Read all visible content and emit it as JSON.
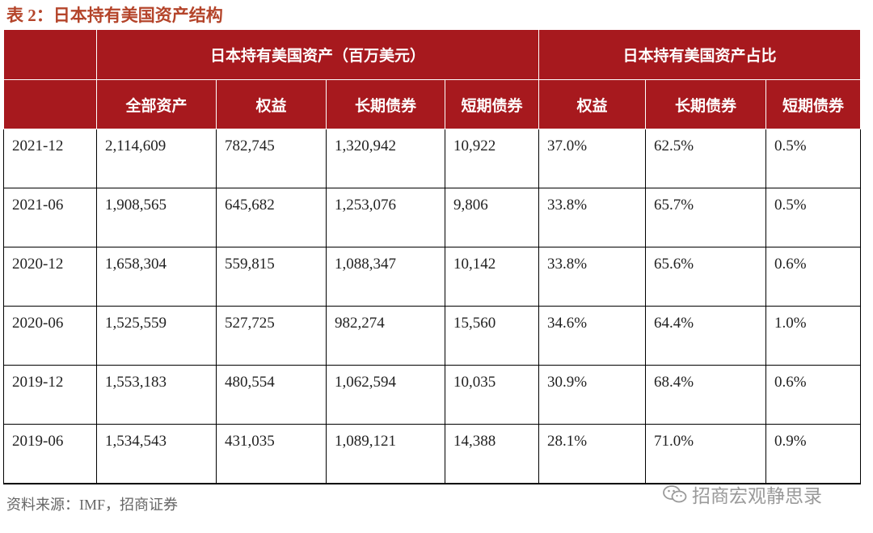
{
  "title": "表 2：日本持有美国资产结构",
  "table": {
    "group_headers": [
      "日本持有美国资产（百万美元）",
      "日本持有美国资产占比"
    ],
    "sub_headers": [
      "全部资产",
      "权益",
      "长期债券",
      "短期债券",
      "权益",
      "长期债券",
      "短期债券"
    ],
    "rows": [
      [
        "2021-12",
        "2,114,609",
        "782,745",
        "1,320,942",
        "10,922",
        "37.0%",
        "62.5%",
        "0.5%"
      ],
      [
        "2021-06",
        "1,908,565",
        "645,682",
        "1,253,076",
        "9,806",
        "33.8%",
        "65.7%",
        "0.5%"
      ],
      [
        "2020-12",
        "1,658,304",
        "559,815",
        "1,088,347",
        "10,142",
        "33.8%",
        "65.6%",
        "0.6%"
      ],
      [
        "2020-06",
        "1,525,559",
        "527,725",
        "982,274",
        "15,560",
        "34.6%",
        "64.4%",
        "1.0%"
      ],
      [
        "2019-12",
        "1,553,183",
        "480,554",
        "1,062,594",
        "10,035",
        "30.9%",
        "68.4%",
        "0.6%"
      ],
      [
        "2019-06",
        "1,534,543",
        "431,035",
        "1,089,121",
        "14,388",
        "28.1%",
        "71.0%",
        "0.9%"
      ]
    ]
  },
  "source": "资料来源：IMF，招商证券",
  "watermark": {
    "text": "招商宏观静思录",
    "icon": "wechat-icon"
  },
  "colors": {
    "header_bg": "#a7191e",
    "title": "#b4442a"
  }
}
